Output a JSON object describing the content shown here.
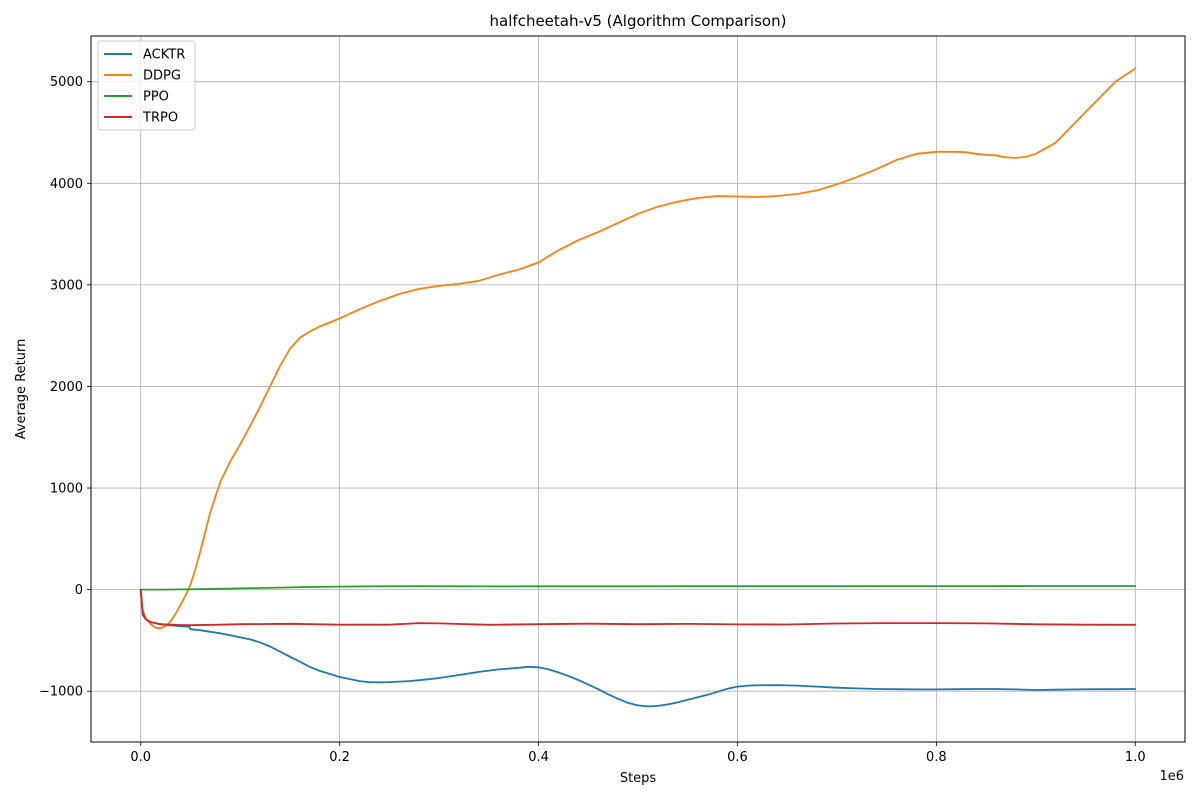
{
  "chart_data": {
    "type": "line",
    "title": "halfcheetah-v5 (Algorithm Comparison)",
    "xlabel": "Steps",
    "ylabel": "Average Return",
    "x_offset_label": "1e6",
    "xlim": [
      -50000,
      1050000
    ],
    "ylim": [
      -1500,
      5450
    ],
    "x_ticks": [
      0,
      200000,
      400000,
      600000,
      800000,
      1000000
    ],
    "x_tick_labels": [
      "0.0",
      "0.2",
      "0.4",
      "0.6",
      "0.8",
      "1.0"
    ],
    "y_ticks": [
      -1000,
      0,
      1000,
      2000,
      3000,
      4000,
      5000
    ],
    "y_tick_labels": [
      "−1000",
      "0",
      "1000",
      "2000",
      "3000",
      "4000",
      "5000"
    ],
    "grid": true,
    "legend_position": "top-left",
    "series": [
      {
        "name": "ACKTR",
        "color": "#1f77b4",
        "x": [
          0,
          2000,
          5000,
          10000,
          20000,
          30000,
          40000,
          49000,
          50000,
          60000,
          70000,
          80000,
          90000,
          100000,
          110000,
          120000,
          130000,
          140000,
          150000,
          160000,
          170000,
          180000,
          190000,
          200000,
          210000,
          220000,
          230000,
          240000,
          250000,
          260000,
          270000,
          280000,
          290000,
          300000,
          320000,
          340000,
          360000,
          380000,
          390000,
          400000,
          410000,
          420000,
          430000,
          440000,
          450000,
          460000,
          470000,
          480000,
          490000,
          500000,
          510000,
          520000,
          530000,
          540000,
          550000,
          560000,
          570000,
          580000,
          590000,
          600000,
          610000,
          620000,
          640000,
          660000,
          680000,
          700000,
          720000,
          740000,
          760000,
          780000,
          800000,
          820000,
          840000,
          860000,
          880000,
          900000,
          920000,
          940000,
          960000,
          980000,
          1000000
        ],
        "y": [
          0,
          -250,
          -290,
          -320,
          -340,
          -350,
          -360,
          -365,
          -390,
          -400,
          -415,
          -430,
          -450,
          -470,
          -490,
          -520,
          -560,
          -610,
          -660,
          -710,
          -760,
          -800,
          -830,
          -860,
          -880,
          -900,
          -910,
          -912,
          -910,
          -905,
          -900,
          -892,
          -882,
          -870,
          -840,
          -810,
          -785,
          -770,
          -760,
          -765,
          -785,
          -815,
          -850,
          -890,
          -935,
          -980,
          -1030,
          -1075,
          -1115,
          -1140,
          -1150,
          -1145,
          -1130,
          -1110,
          -1085,
          -1060,
          -1035,
          -1005,
          -975,
          -955,
          -945,
          -942,
          -940,
          -945,
          -955,
          -965,
          -972,
          -978,
          -980,
          -982,
          -982,
          -980,
          -978,
          -978,
          -982,
          -988,
          -985,
          -982,
          -980,
          -980,
          -978
        ]
      },
      {
        "name": "DDPG",
        "color": "#ff7f0e",
        "x": [
          0,
          2000,
          5000,
          10000,
          15000,
          20000,
          25000,
          30000,
          35000,
          40000,
          45000,
          50000,
          55000,
          60000,
          70000,
          80000,
          90000,
          100000,
          110000,
          120000,
          130000,
          140000,
          150000,
          160000,
          170000,
          180000,
          190000,
          200000,
          220000,
          240000,
          260000,
          280000,
          300000,
          320000,
          340000,
          360000,
          380000,
          400000,
          420000,
          440000,
          460000,
          480000,
          500000,
          520000,
          540000,
          560000,
          580000,
          600000,
          620000,
          640000,
          660000,
          680000,
          700000,
          720000,
          740000,
          760000,
          780000,
          800000,
          810000,
          820000,
          830000,
          840000,
          850000,
          860000,
          870000,
          880000,
          890000,
          900000,
          920000,
          940000,
          960000,
          980000,
          1000000
        ],
        "y": [
          0,
          -200,
          -280,
          -340,
          -375,
          -380,
          -360,
          -310,
          -240,
          -150,
          -60,
          50,
          200,
          380,
          760,
          1060,
          1260,
          1430,
          1610,
          1800,
          2000,
          2200,
          2370,
          2480,
          2540,
          2590,
          2630,
          2670,
          2760,
          2840,
          2910,
          2960,
          2990,
          3010,
          3040,
          3100,
          3150,
          3220,
          3340,
          3440,
          3520,
          3610,
          3700,
          3770,
          3820,
          3855,
          3875,
          3870,
          3865,
          3875,
          3895,
          3930,
          3990,
          4060,
          4140,
          4230,
          4290,
          4310,
          4310,
          4310,
          4305,
          4290,
          4280,
          4275,
          4255,
          4250,
          4260,
          4290,
          4400,
          4600,
          4800,
          5000,
          5130
        ]
      },
      {
        "name": "PPO",
        "color": "#2ca02c",
        "x": [
          0,
          20000,
          40000,
          60000,
          80000,
          100000,
          120000,
          140000,
          160000,
          180000,
          200000,
          240000,
          280000,
          320000,
          360000,
          400000,
          450000,
          500000,
          550000,
          600000,
          650000,
          700000,
          750000,
          800000,
          850000,
          900000,
          950000,
          1000000
        ],
        "y": [
          0,
          0,
          2,
          4,
          8,
          12,
          16,
          20,
          24,
          27,
          30,
          33,
          34,
          33,
          32,
          33,
          33,
          33,
          34,
          34,
          34,
          34,
          35,
          35,
          35,
          36,
          36,
          36
        ]
      },
      {
        "name": "TRPO",
        "color": "#d62728",
        "x": [
          0,
          2000,
          5000,
          10000,
          20000,
          30000,
          40000,
          50000,
          80000,
          100000,
          150000,
          200000,
          250000,
          280000,
          300000,
          350000,
          400000,
          450000,
          500000,
          550000,
          600000,
          650000,
          700000,
          750000,
          800000,
          850000,
          900000,
          950000,
          1000000
        ],
        "y": [
          0,
          -230,
          -290,
          -320,
          -340,
          -345,
          -348,
          -350,
          -345,
          -340,
          -336,
          -345,
          -345,
          -330,
          -332,
          -346,
          -340,
          -335,
          -340,
          -337,
          -342,
          -343,
          -333,
          -330,
          -330,
          -332,
          -341,
          -345,
          -346
        ]
      }
    ]
  }
}
